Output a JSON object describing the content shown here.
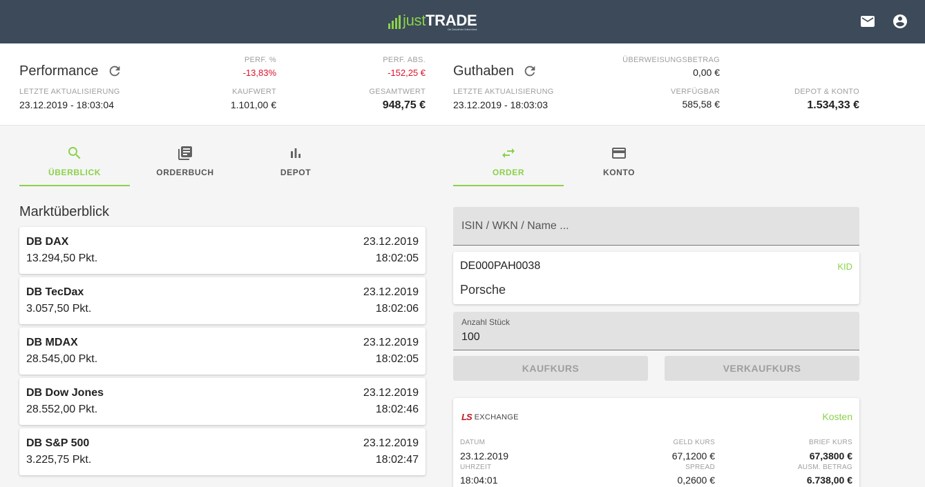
{
  "header": {
    "logo_just": "just",
    "logo_trade": "TRADE",
    "logo_tagline": "Die Zukunft der Online-Bank",
    "icons": [
      "mail-icon",
      "account-circle-icon"
    ]
  },
  "performance": {
    "title": "Performance",
    "last_update_label": "LETZTE AKTUALISIERUNG",
    "last_update": "23.12.2019 - 18:03:04",
    "perf_pct_label": "PERF. %",
    "perf_pct": "-13,83%",
    "perf_abs_label": "PERF. ABS.",
    "perf_abs": "-152,25 €",
    "purchase_label": "KAUFWERT",
    "purchase_value": "1.101,00 €",
    "total_label": "GESAMTWERT",
    "total_value": "948,75 €"
  },
  "balance": {
    "title": "Guthaben",
    "last_update_label": "LETZTE AKTUALISIERUNG",
    "last_update": "23.12.2019 - 18:03:03",
    "transfer_label": "ÜBERWEISUNGSBETRAG",
    "transfer_value": "0,00 €",
    "available_label": "VERFÜGBAR",
    "available_value": "585,58 €",
    "depot_konto_label": "DEPOT & KONTO",
    "depot_konto_value": "1.534,33 €"
  },
  "left_tabs": [
    {
      "label": "ÜBERBLICK",
      "icon": "search-icon",
      "active": true
    },
    {
      "label": "ORDERBUCH",
      "icon": "library-books-icon",
      "active": false
    },
    {
      "label": "DEPOT",
      "icon": "bar-chart-icon",
      "active": false
    }
  ],
  "right_tabs": [
    {
      "label": "ORDER",
      "icon": "swap-horiz-icon",
      "active": true
    },
    {
      "label": "KONTO",
      "icon": "credit-card-icon",
      "active": false
    }
  ],
  "market": {
    "title": "Marktüberblick",
    "items": [
      {
        "name": "DB DAX",
        "value": "13.294,50 Pkt.",
        "date": "23.12.2019",
        "time": "18:02:05"
      },
      {
        "name": "DB TecDax",
        "value": "3.057,50 Pkt.",
        "date": "23.12.2019",
        "time": "18:02:06"
      },
      {
        "name": "DB MDAX",
        "value": "28.545,00 Pkt.",
        "date": "23.12.2019",
        "time": "18:02:05"
      },
      {
        "name": "DB Dow Jones",
        "value": "28.552,00 Pkt.",
        "date": "23.12.2019",
        "time": "18:02:46"
      },
      {
        "name": "DB S&P 500",
        "value": "3.225,75 Pkt.",
        "date": "23.12.2019",
        "time": "18:02:47"
      }
    ]
  },
  "order": {
    "search_placeholder": "ISIN / WKN / Name ...",
    "instrument": {
      "isin": "DE000PAH0038",
      "kid_label": "KID",
      "name": "Porsche"
    },
    "quantity_label": "Anzahl Stück",
    "quantity_value": "100",
    "buy_label": "KAUFKURS",
    "sell_label": "VERKAUFKURS",
    "quote": {
      "exchange_mark": "LS",
      "exchange_text": "EXCHANGE",
      "costs_label": "Kosten",
      "date_label": "DATUM",
      "date": "23.12.2019",
      "time_label": "UHRZEIT",
      "time": "18:04:01",
      "bid_label": "GELD KURS",
      "bid": "67,1200 €",
      "spread_label": "SPREAD",
      "spread": "0,2600 €",
      "ask_label": "BRIEF KURS",
      "ask": "67,3800 €",
      "payout_label": "AUSM. BETRAG",
      "payout": "6.738,00 €"
    }
  },
  "colors": {
    "header_bg": "#3c4a59",
    "accent_green": "#8bd14a",
    "negative_red": "#e0102b",
    "exchange_red": "#c0151e"
  }
}
